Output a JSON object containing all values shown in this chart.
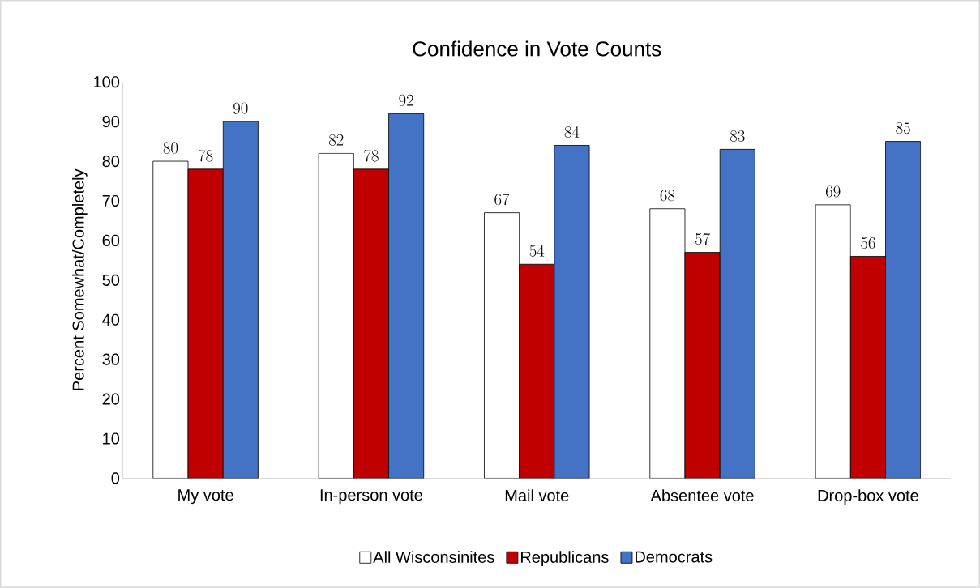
{
  "chart_data": {
    "type": "bar",
    "title": "Confidence in Vote Counts",
    "ylabel": "Percent Somewhat/Completely",
    "categories": [
      "My vote",
      "In-person vote",
      "Mail vote",
      "Absentee vote",
      "Drop-box vote"
    ],
    "series": [
      {
        "name": "All Wisconsinites",
        "color": "#ffffff",
        "values": [
          80,
          82,
          67,
          68,
          69
        ]
      },
      {
        "name": "Republicans",
        "color": "#c00000",
        "values": [
          78,
          78,
          54,
          57,
          56
        ]
      },
      {
        "name": "Democrats",
        "color": "#4472c4",
        "values": [
          90,
          92,
          84,
          83,
          85
        ]
      }
    ],
    "ylim": [
      0,
      100
    ],
    "yticks": [
      0,
      10,
      20,
      30,
      40,
      50,
      60,
      70,
      80,
      90,
      100
    ],
    "data_labels": true,
    "legend": "bottom",
    "grid": false
  }
}
